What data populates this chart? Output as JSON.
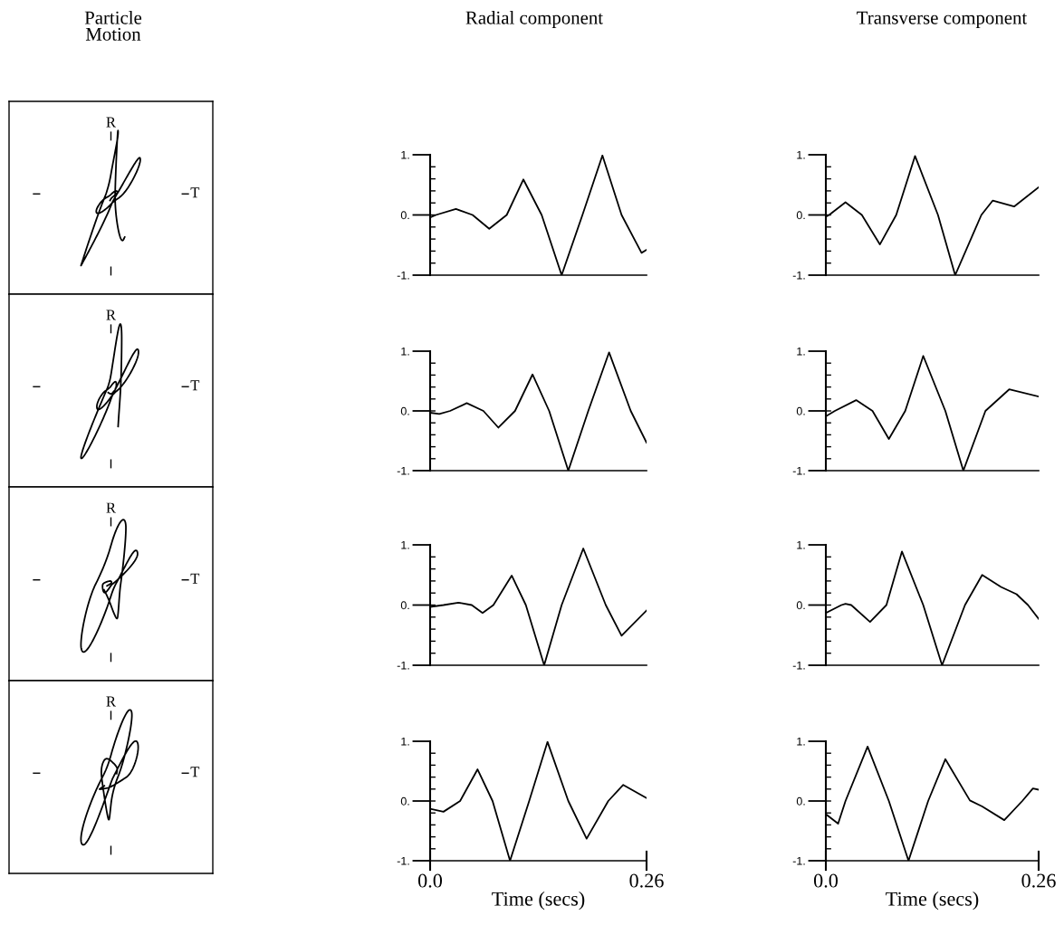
{
  "chart_data": [
    {
      "type": "other",
      "title": "Particle Motion",
      "xlabel": "T",
      "ylabel": "R"
    },
    {
      "type": "other",
      "xlabel": "T",
      "ylabel": "R"
    },
    {
      "type": "other",
      "xlabel": "T",
      "ylabel": "R"
    },
    {
      "type": "other",
      "xlabel": "T",
      "ylabel": "R"
    },
    {
      "type": "line",
      "title": "Radial component",
      "tick_labels": "y",
      "xlim": [
        0,
        0.26
      ],
      "ylim": [
        -1,
        1
      ],
      "yticks": [
        {
          "value": -1,
          "label": "-1."
        },
        {
          "value": 0,
          "label": "0."
        },
        {
          "value": 1,
          "label": "1."
        }
      ],
      "x": [
        0,
        0.007,
        0.031,
        0.051,
        0.071,
        0.092,
        0.112,
        0.134,
        0.158,
        0.183,
        0.207,
        0.23,
        0.254,
        0.26
      ],
      "series": [
        {
          "color": "#000000",
          "values": [
            -0.04,
            0,
            0.1,
            0,
            -0.23,
            0,
            0.59,
            0,
            -1,
            0,
            0.99,
            0,
            -0.63,
            -0.58
          ]
        }
      ]
    },
    {
      "type": "line",
      "tick_labels": "y",
      "xlim": [
        0,
        0.26
      ],
      "ylim": [
        -1,
        1
      ],
      "yticks": [
        {
          "value": -1,
          "label": "-1."
        },
        {
          "value": 0,
          "label": "0."
        },
        {
          "value": 1,
          "label": "1."
        }
      ],
      "x": [
        0,
        0.011,
        0.024,
        0.044,
        0.064,
        0.082,
        0.102,
        0.123,
        0.143,
        0.166,
        0.19,
        0.215,
        0.241,
        0.26
      ],
      "series": [
        {
          "color": "#000000",
          "values": [
            -0.03,
            -0.05,
            0,
            0.13,
            0,
            -0.28,
            0,
            0.61,
            0,
            -1,
            0,
            0.98,
            0,
            -0.53
          ]
        }
      ]
    },
    {
      "type": "line",
      "tick_labels": "y",
      "xlim": [
        0,
        0.26
      ],
      "ylim": [
        -1,
        1
      ],
      "yticks": [
        {
          "value": -1,
          "label": "-1."
        },
        {
          "value": 0,
          "label": "0."
        },
        {
          "value": 1,
          "label": "1."
        }
      ],
      "x": [
        0,
        0.016,
        0.034,
        0.05,
        0.063,
        0.076,
        0.098,
        0.115,
        0.137,
        0.158,
        0.184,
        0.211,
        0.23,
        0.26
      ],
      "series": [
        {
          "color": "#000000",
          "values": [
            -0.03,
            0,
            0.04,
            0,
            -0.13,
            0,
            0.49,
            0,
            -1,
            0,
            0.94,
            0,
            -0.51,
            -0.09
          ]
        }
      ]
    },
    {
      "type": "line",
      "xlabel": "Time (secs)",
      "xlim": [
        0,
        0.26
      ],
      "xticks": [
        {
          "value": 0,
          "label": "0.0"
        },
        0.26
      ],
      "ylim": [
        -1,
        1
      ],
      "yticks": [
        {
          "value": -1,
          "label": "-1."
        },
        {
          "value": 0,
          "label": "0."
        },
        {
          "value": 1,
          "label": "1."
        }
      ],
      "x": [
        0,
        0.016,
        0.036,
        0.057,
        0.075,
        0.096,
        0.119,
        0.141,
        0.166,
        0.188,
        0.214,
        0.232,
        0.26
      ],
      "series": [
        {
          "color": "#000000",
          "values": [
            -0.13,
            -0.18,
            0,
            0.53,
            0,
            -1,
            0,
            0.99,
            0,
            -0.63,
            0,
            0.27,
            0.05
          ]
        }
      ]
    },
    {
      "type": "line",
      "title": "Transverse component",
      "tick_labels": "y",
      "xlim": [
        0,
        0.26
      ],
      "ylim": [
        -1,
        1
      ],
      "yticks": [
        {
          "value": -1,
          "label": "-1."
        },
        {
          "value": 0,
          "label": "0."
        },
        {
          "value": 1,
          "label": "1."
        }
      ],
      "x": [
        0,
        0.004,
        0.024,
        0.044,
        0.066,
        0.086,
        0.109,
        0.137,
        0.158,
        0.19,
        0.204,
        0.23,
        0.26
      ],
      "series": [
        {
          "color": "#000000",
          "values": [
            -0.03,
            0,
            0.21,
            0,
            -0.49,
            0,
            0.98,
            0,
            -1,
            0,
            0.24,
            0.14,
            0.46
          ]
        }
      ]
    },
    {
      "type": "line",
      "tick_labels": "y",
      "xlim": [
        0,
        0.26
      ],
      "ylim": [
        -1,
        1
      ],
      "yticks": [
        {
          "value": -1,
          "label": "-1."
        },
        {
          "value": 0,
          "label": "0."
        },
        {
          "value": 1,
          "label": "1."
        }
      ],
      "x": [
        0,
        0.011,
        0.037,
        0.057,
        0.077,
        0.097,
        0.119,
        0.146,
        0.168,
        0.195,
        0.224,
        0.26
      ],
      "series": [
        {
          "color": "#000000",
          "values": [
            -0.09,
            0,
            0.18,
            0,
            -0.47,
            0,
            0.92,
            0,
            -1,
            0,
            0.36,
            0.24
          ]
        }
      ]
    },
    {
      "type": "line",
      "tick_labels": "y",
      "xlim": [
        0,
        0.26
      ],
      "ylim": [
        -1,
        1
      ],
      "yticks": [
        {
          "value": -1,
          "label": "-1."
        },
        {
          "value": 0,
          "label": "0."
        },
        {
          "value": 1,
          "label": "1."
        }
      ],
      "x": [
        0,
        0.019,
        0.024,
        0.031,
        0.054,
        0.074,
        0.093,
        0.119,
        0.142,
        0.17,
        0.191,
        0.214,
        0.233,
        0.247,
        0.26
      ],
      "series": [
        {
          "color": "#000000",
          "values": [
            -0.13,
            0,
            0.02,
            0,
            -0.28,
            0,
            0.89,
            0,
            -1,
            0,
            0.5,
            0.3,
            0.18,
            0,
            -0.23
          ]
        }
      ]
    },
    {
      "type": "line",
      "xlabel": "Time (secs)",
      "xlim": [
        0,
        0.26
      ],
      "xticks": [
        {
          "value": 0,
          "label": "0.0"
        },
        0.26
      ],
      "ylim": [
        -1,
        1
      ],
      "yticks": [
        {
          "value": -1,
          "label": "-1."
        },
        {
          "value": 0,
          "label": "0."
        },
        {
          "value": 1,
          "label": "1."
        }
      ],
      "x": [
        0,
        0.015,
        0.024,
        0.051,
        0.077,
        0.101,
        0.125,
        0.146,
        0.176,
        0.191,
        0.218,
        0.24,
        0.253,
        0.26
      ],
      "series": [
        {
          "color": "#000000",
          "values": [
            -0.22,
            -0.38,
            0,
            0.91,
            0,
            -1,
            0,
            0.7,
            0.01,
            -0.09,
            -0.32,
            0,
            0.21,
            0.19
          ]
        }
      ]
    }
  ]
}
